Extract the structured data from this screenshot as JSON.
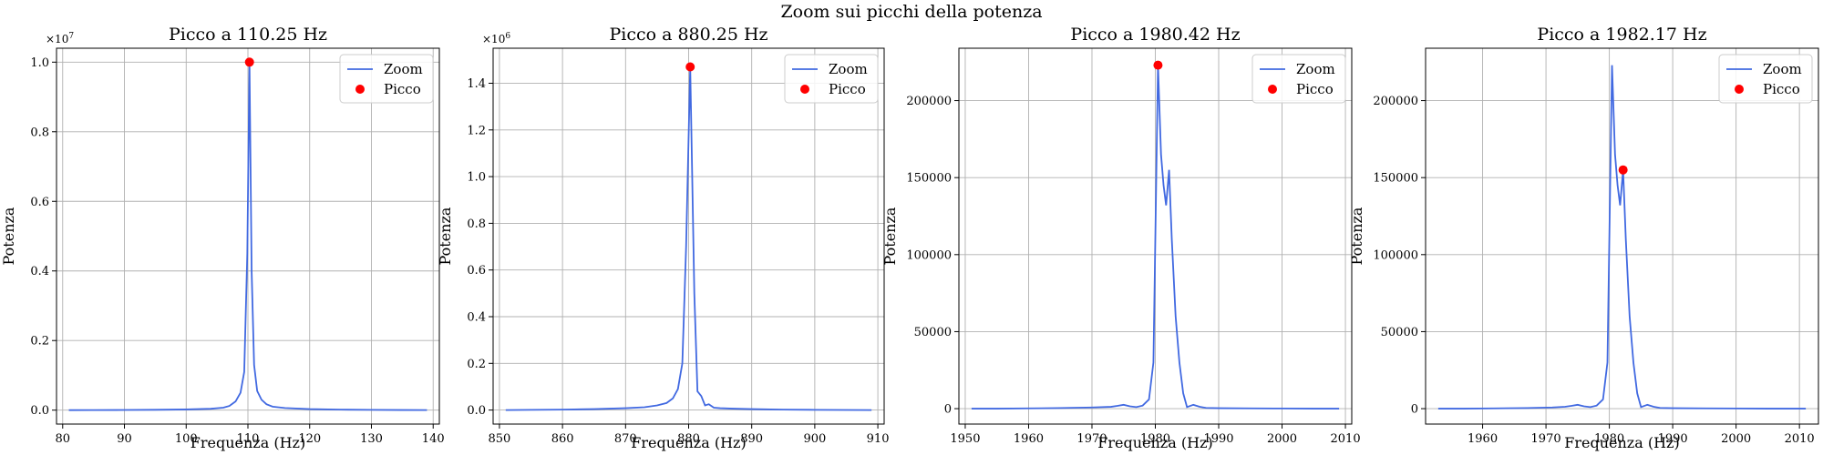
{
  "figure": {
    "suptitle": "Zoom sui picchi della potenza"
  },
  "colors": {
    "series": "#4169e1",
    "peak": "#ff0000",
    "grid": "#b0b0b0"
  },
  "chart_data": [
    {
      "type": "line",
      "title": "Picco a 110.25 Hz",
      "xlabel": "Frequenza (Hz)",
      "ylabel": "Potenza",
      "xlim": [
        79,
        141
      ],
      "ylim": [
        -400000,
        10400000
      ],
      "xticks": [
        80,
        90,
        100,
        110,
        120,
        130,
        140
      ],
      "yticks": [
        0,
        2000000,
        4000000,
        6000000,
        8000000,
        10000000
      ],
      "ytick_labels": [
        "0.0",
        "0.2",
        "0.4",
        "0.6",
        "0.8",
        "1.0"
      ],
      "offset_label": "×10^7",
      "grid": true,
      "legend": {
        "location": "top-right",
        "entries": [
          "Zoom",
          "Picco"
        ]
      },
      "series": [
        {
          "name": "Zoom",
          "x": [
            81,
            85,
            90,
            95,
            100,
            104,
            106,
            107,
            108,
            108.8,
            109.4,
            109.9,
            110.25,
            110.6,
            111,
            111.5,
            112.2,
            113,
            114,
            116,
            120,
            125,
            130,
            135,
            139
          ],
          "y": [
            0,
            2000,
            5000,
            10000,
            20000,
            40000,
            70000,
            120000,
            250000,
            500000,
            1100000,
            4500000,
            10000000,
            4000000,
            1300000,
            550000,
            300000,
            170000,
            100000,
            60000,
            30000,
            15000,
            8000,
            4000,
            2000
          ]
        }
      ],
      "peak": {
        "name": "Picco",
        "x": 110.25,
        "y": 10000000
      }
    },
    {
      "type": "line",
      "title": "Picco a 880.25 Hz",
      "xlabel": "Frequenza (Hz)",
      "ylabel": "Potenza",
      "xlim": [
        849,
        911
      ],
      "ylim": [
        -60000,
        1550000
      ],
      "xticks": [
        850,
        860,
        870,
        880,
        890,
        900,
        910
      ],
      "yticks": [
        0,
        200000,
        400000,
        600000,
        800000,
        1000000,
        1200000,
        1400000
      ],
      "ytick_labels": [
        "0.0",
        "0.2",
        "0.4",
        "0.6",
        "0.8",
        "1.0",
        "1.2",
        "1.4"
      ],
      "offset_label": "×10^6",
      "grid": true,
      "legend": {
        "location": "top-right",
        "entries": [
          "Zoom",
          "Picco"
        ]
      },
      "series": [
        {
          "name": "Zoom",
          "x": [
            851,
            855,
            860,
            865,
            870,
            873,
            875,
            876.5,
            877.5,
            878.3,
            879,
            879.6,
            880.25,
            880.9,
            881.4,
            882,
            882.6,
            883.2,
            884,
            885,
            887,
            890,
            895,
            900,
            909
          ],
          "y": [
            0,
            1000,
            2000,
            4000,
            8000,
            12000,
            20000,
            30000,
            50000,
            90000,
            200000,
            700000,
            1470000,
            500000,
            80000,
            60000,
            20000,
            25000,
            10000,
            8000,
            6000,
            4000,
            2000,
            1000,
            0
          ]
        }
      ],
      "peak": {
        "name": "Picco",
        "x": 880.25,
        "y": 1470000
      }
    },
    {
      "type": "line",
      "title": "Picco a 1980.42 Hz",
      "xlabel": "Frequenza (Hz)",
      "ylabel": "Potenza",
      "xlim": [
        1949,
        2011
      ],
      "ylim": [
        -10000,
        234000
      ],
      "xticks": [
        1950,
        1960,
        1970,
        1980,
        1990,
        2000,
        2010
      ],
      "yticks": [
        0,
        50000,
        100000,
        150000,
        200000
      ],
      "ytick_labels": [
        "0",
        "50000",
        "100000",
        "150000",
        "200000"
      ],
      "offset_label": "",
      "grid": true,
      "legend": {
        "location": "top-right",
        "entries": [
          "Zoom",
          "Picco"
        ]
      },
      "series": [
        {
          "name": "Zoom",
          "x": [
            1951,
            1955,
            1960,
            1965,
            1970,
            1973,
            1974,
            1975,
            1976,
            1977,
            1978,
            1979,
            1979.7,
            1980.42,
            1980.9,
            1981.3,
            1981.7,
            1982.17,
            1982.6,
            1983.2,
            1983.8,
            1984.4,
            1985,
            1986,
            1987,
            1988,
            1990,
            1995,
            2000,
            2005,
            2009
          ],
          "y": [
            0,
            0,
            200,
            400,
            800,
            1200,
            1800,
            2500,
            1500,
            1000,
            2000,
            6000,
            30000,
            223000,
            165000,
            145000,
            132000,
            155000,
            110000,
            60000,
            30000,
            10000,
            1000,
            2500,
            1200,
            500,
            300,
            200,
            100,
            0,
            0
          ]
        }
      ],
      "peak": {
        "name": "Picco",
        "x": 1980.42,
        "y": 223000
      }
    },
    {
      "type": "line",
      "title": "Picco a 1982.17 Hz",
      "xlabel": "Frequenza (Hz)",
      "ylabel": "Potenza",
      "xlim": [
        1951,
        2013
      ],
      "ylim": [
        -10000,
        234000
      ],
      "xticks": [
        1960,
        1970,
        1980,
        1990,
        2000,
        2010
      ],
      "yticks": [
        0,
        50000,
        100000,
        150000,
        200000
      ],
      "ytick_labels": [
        "0",
        "50000",
        "100000",
        "150000",
        "200000"
      ],
      "offset_label": "",
      "grid": true,
      "legend": {
        "location": "top-right",
        "entries": [
          "Zoom",
          "Picco"
        ]
      },
      "series": [
        {
          "name": "Zoom",
          "x": [
            1953,
            1957,
            1962,
            1967,
            1971,
            1973,
            1974,
            1975,
            1976,
            1977,
            1978,
            1979,
            1979.7,
            1980.42,
            1980.9,
            1981.3,
            1981.7,
            1982.17,
            1982.6,
            1983.2,
            1983.8,
            1984.4,
            1985,
            1986,
            1987,
            1988,
            1990,
            1995,
            2000,
            2005,
            2011
          ],
          "y": [
            0,
            0,
            200,
            400,
            800,
            1200,
            1800,
            2500,
            1500,
            1000,
            2000,
            6000,
            30000,
            223000,
            165000,
            145000,
            132000,
            155000,
            110000,
            60000,
            30000,
            10000,
            1000,
            2500,
            1200,
            500,
            300,
            200,
            100,
            0,
            0
          ]
        }
      ],
      "peak": {
        "name": "Picco",
        "x": 1982.17,
        "y": 155000
      }
    }
  ]
}
